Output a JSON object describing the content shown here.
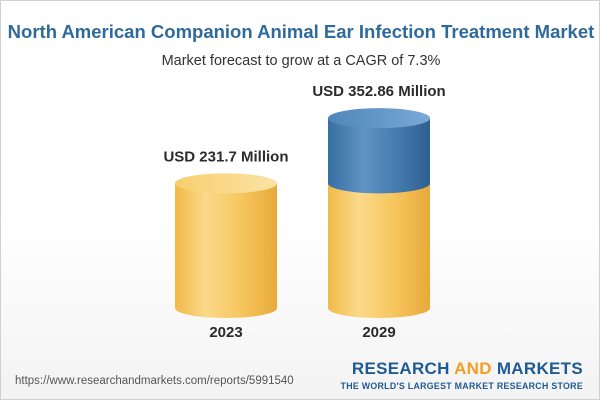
{
  "title": "North American Companion Animal Ear Infection Treatment Market",
  "subtitle": "Market forecast to grow at a CAGR of 7.3%",
  "source_url": "https://www.researchandmarkets.com/reports/5991540",
  "brand": {
    "name_part1": "RESEARCH ",
    "name_part2": "AND",
    "name_part3": " MARKETS",
    "tagline": "THE WORLD'S LARGEST MARKET RESEARCH STORE"
  },
  "colors": {
    "title": "#2f6a9c",
    "base_fill": "#f5c75a",
    "growth_fill": "#3f78ad",
    "brand": "#1f5a94",
    "brand_accent": "#f0a020"
  },
  "chart_data": {
    "type": "bar",
    "categories": [
      "2023",
      "2029"
    ],
    "values": [
      231.7,
      352.86
    ],
    "value_labels": [
      "USD 231.7 Million",
      "USD 352.86 Million"
    ],
    "unit": "USD Million",
    "cagr_percent": 7.3,
    "grid": false
  }
}
